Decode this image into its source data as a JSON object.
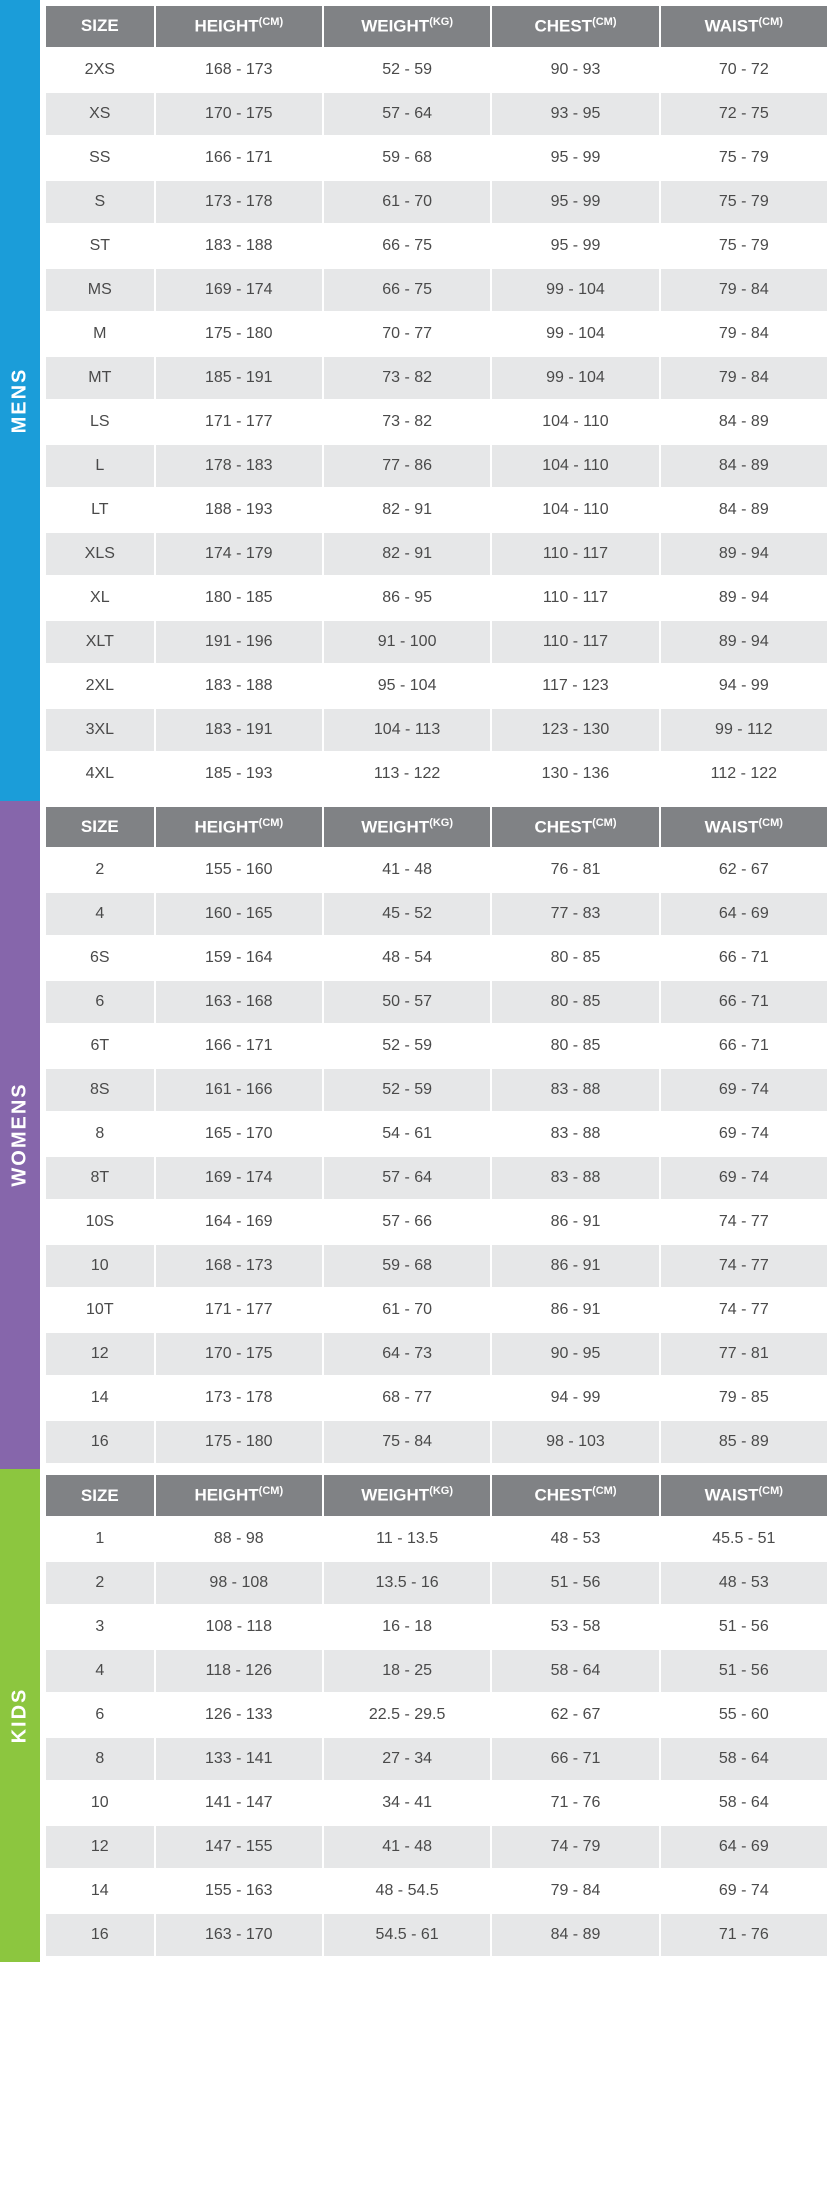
{
  "colors": {
    "header_bg": "#808285",
    "header_fg": "#ffffff",
    "row_odd": "#ffffff",
    "row_even": "#e6e7e8",
    "cell_text": "#4a4a4a",
    "mens": "#1b9dd9",
    "womens": "#8666ab",
    "kids": "#8cc63f"
  },
  "columns": [
    {
      "label": "SIZE",
      "unit": ""
    },
    {
      "label": "HEIGHT",
      "unit": "(CM)"
    },
    {
      "label": "WEIGHT",
      "unit": "(KG)"
    },
    {
      "label": "CHEST",
      "unit": "(CM)"
    },
    {
      "label": "WAIST",
      "unit": "(CM)"
    }
  ],
  "sections": [
    {
      "id": "mens",
      "label": "MENS",
      "color": "#1b9dd9",
      "rows": [
        [
          "2XS",
          "168 - 173",
          "52 - 59",
          "90 - 93",
          "70 - 72"
        ],
        [
          "XS",
          "170 - 175",
          "57 - 64",
          "93 - 95",
          "72 - 75"
        ],
        [
          "SS",
          "166 - 171",
          "59 - 68",
          "95 - 99",
          "75 - 79"
        ],
        [
          "S",
          "173 - 178",
          "61 - 70",
          "95 - 99",
          "75 - 79"
        ],
        [
          "ST",
          "183 - 188",
          "66 - 75",
          "95 - 99",
          "75 - 79"
        ],
        [
          "MS",
          "169 - 174",
          "66 - 75",
          "99 - 104",
          "79 - 84"
        ],
        [
          "M",
          "175 - 180",
          "70 - 77",
          "99 - 104",
          "79 - 84"
        ],
        [
          "MT",
          "185 - 191",
          "73 - 82",
          "99 - 104",
          "79 - 84"
        ],
        [
          "LS",
          "171 - 177",
          "73 - 82",
          "104 - 110",
          "84 - 89"
        ],
        [
          "L",
          "178 - 183",
          "77 - 86",
          "104 - 110",
          "84 - 89"
        ],
        [
          "LT",
          "188 - 193",
          "82 - 91",
          "104 - 110",
          "84 - 89"
        ],
        [
          "XLS",
          "174 - 179",
          "82 - 91",
          "110 - 117",
          "89 - 94"
        ],
        [
          "XL",
          "180 - 185",
          "86 - 95",
          "110 - 117",
          "89 - 94"
        ],
        [
          "XLT",
          "191 - 196",
          "91 - 100",
          "110 - 117",
          "89 - 94"
        ],
        [
          "2XL",
          "183 - 188",
          "95 - 104",
          "117 - 123",
          "94 - 99"
        ],
        [
          "3XL",
          "183 - 191",
          "104 - 113",
          "123 - 130",
          "99 - 112"
        ],
        [
          "4XL",
          "185 - 193",
          "113 - 122",
          "130 - 136",
          "112 - 122"
        ]
      ]
    },
    {
      "id": "womens",
      "label": "WOMENS",
      "color": "#8666ab",
      "rows": [
        [
          "2",
          "155 - 160",
          "41 - 48",
          "76 - 81",
          "62 - 67"
        ],
        [
          "4",
          "160 - 165",
          "45 - 52",
          "77 - 83",
          "64 - 69"
        ],
        [
          "6S",
          "159 - 164",
          "48 - 54",
          "80 - 85",
          "66 - 71"
        ],
        [
          "6",
          "163 - 168",
          "50 - 57",
          "80 - 85",
          "66 - 71"
        ],
        [
          "6T",
          "166 - 171",
          "52 - 59",
          "80 - 85",
          "66 - 71"
        ],
        [
          "8S",
          "161 - 166",
          "52 - 59",
          "83 - 88",
          "69 - 74"
        ],
        [
          "8",
          "165 - 170",
          "54 - 61",
          "83 - 88",
          "69 - 74"
        ],
        [
          "8T",
          "169 - 174",
          "57 - 64",
          "83 - 88",
          "69 - 74"
        ],
        [
          "10S",
          "164 - 169",
          "57 - 66",
          "86 - 91",
          "74 - 77"
        ],
        [
          "10",
          "168 - 173",
          "59 - 68",
          "86 - 91",
          "74 - 77"
        ],
        [
          "10T",
          "171 - 177",
          "61 - 70",
          "86 - 91",
          "74 - 77"
        ],
        [
          "12",
          "170 - 175",
          "64 - 73",
          "90 - 95",
          "77 - 81"
        ],
        [
          "14",
          "173 - 178",
          "68 - 77",
          "94 - 99",
          "79 - 85"
        ],
        [
          "16",
          "175 - 180",
          "75 - 84",
          "98 - 103",
          "85 - 89"
        ]
      ]
    },
    {
      "id": "kids",
      "label": "KIDS",
      "color": "#8cc63f",
      "rows": [
        [
          "1",
          "88 - 98",
          "11 - 13.5",
          "48 - 53",
          "45.5 - 51"
        ],
        [
          "2",
          "98 - 108",
          "13.5 - 16",
          "51 - 56",
          "48 - 53"
        ],
        [
          "3",
          "108 - 118",
          "16 - 18",
          "53 - 58",
          "51 - 56"
        ],
        [
          "4",
          "118 - 126",
          "18 - 25",
          "58 - 64",
          "51 - 56"
        ],
        [
          "6",
          "126 - 133",
          "22.5 - 29.5",
          "62 - 67",
          "55 - 60"
        ],
        [
          "8",
          "133 - 141",
          "27 - 34",
          "66 - 71",
          "58 - 64"
        ],
        [
          "10",
          "141 - 147",
          "34 - 41",
          "71 - 76",
          "58 - 64"
        ],
        [
          "12",
          "147 - 155",
          "41 - 48",
          "74 - 79",
          "64 - 69"
        ],
        [
          "14",
          "155 - 163",
          "48 - 54.5",
          "79 - 84",
          "69 - 74"
        ],
        [
          "16",
          "163 - 170",
          "54.5 - 61",
          "84 - 89",
          "71 - 76"
        ]
      ]
    }
  ]
}
